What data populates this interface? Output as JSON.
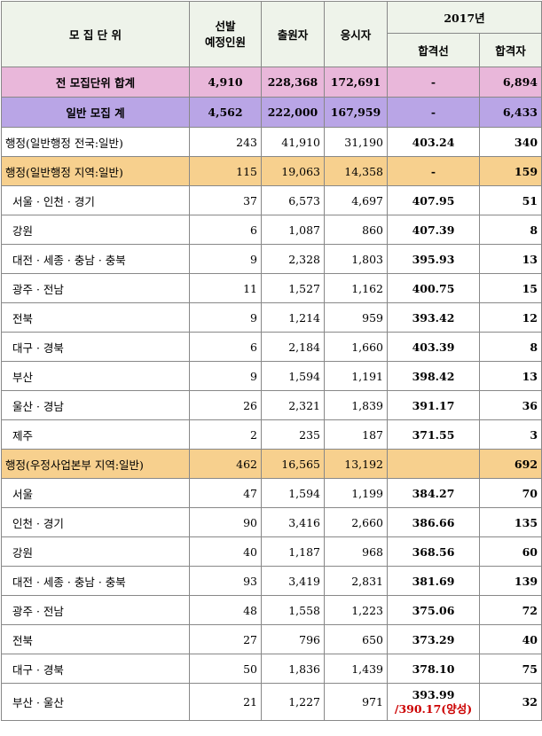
{
  "header": {
    "unit": "모 집 단 위",
    "planned": "선발\n예정인원",
    "applicants": "출원자",
    "takers": "응시자",
    "year": "2017년",
    "cutoff": "합격선",
    "passed": "합격자"
  },
  "summary": {
    "total": {
      "label": "전 모집단위 합계",
      "planned": "4,910",
      "applicants": "228,368",
      "takers": "172,691",
      "cutoff": "-",
      "passed": "6,894"
    },
    "general": {
      "label": "일반 모집 계",
      "planned": "4,562",
      "applicants": "222,000",
      "takers": "167,959",
      "cutoff": "-",
      "passed": "6,433"
    }
  },
  "rows": [
    {
      "label": "행정(일반행정 전국:일반)",
      "planned": "243",
      "applicants": "41,910",
      "takers": "31,190",
      "cutoff": "403.24",
      "passed": "340",
      "style": "plain"
    },
    {
      "label": "행정(일반행정 지역:일반)",
      "planned": "115",
      "applicants": "19,063",
      "takers": "14,358",
      "cutoff": "-",
      "passed": "159",
      "style": "orange"
    },
    {
      "label": "서울 · 인천 · 경기",
      "planned": "37",
      "applicants": "6,573",
      "takers": "4,697",
      "cutoff": "407.95",
      "passed": "51",
      "style": "sub"
    },
    {
      "label": "강원",
      "planned": "6",
      "applicants": "1,087",
      "takers": "860",
      "cutoff": "407.39",
      "passed": "8",
      "style": "sub"
    },
    {
      "label": "대전 · 세종 · 충남 · 충북",
      "planned": "9",
      "applicants": "2,328",
      "takers": "1,803",
      "cutoff": "395.93",
      "passed": "13",
      "style": "sub"
    },
    {
      "label": "광주 · 전남",
      "planned": "11",
      "applicants": "1,527",
      "takers": "1,162",
      "cutoff": "400.75",
      "passed": "15",
      "style": "sub"
    },
    {
      "label": "전북",
      "planned": "9",
      "applicants": "1,214",
      "takers": "959",
      "cutoff": "393.42",
      "passed": "12",
      "style": "sub"
    },
    {
      "label": "대구 · 경북",
      "planned": "6",
      "applicants": "2,184",
      "takers": "1,660",
      "cutoff": "403.39",
      "passed": "8",
      "style": "sub"
    },
    {
      "label": "부산",
      "planned": "9",
      "applicants": "1,594",
      "takers": "1,191",
      "cutoff": "398.42",
      "passed": "13",
      "style": "sub"
    },
    {
      "label": "울산 · 경남",
      "planned": "26",
      "applicants": "2,321",
      "takers": "1,839",
      "cutoff": "391.17",
      "passed": "36",
      "style": "sub"
    },
    {
      "label": "제주",
      "planned": "2",
      "applicants": "235",
      "takers": "187",
      "cutoff": "371.55",
      "passed": "3",
      "style": "sub"
    },
    {
      "label": "행정(우정사업본부 지역:일반)",
      "planned": "462",
      "applicants": "16,565",
      "takers": "13,192",
      "cutoff": "",
      "passed": "692",
      "style": "orange"
    },
    {
      "label": "서울",
      "planned": "47",
      "applicants": "1,594",
      "takers": "1,199",
      "cutoff": "384.27",
      "passed": "70",
      "style": "sub"
    },
    {
      "label": "인천 · 경기",
      "planned": "90",
      "applicants": "3,416",
      "takers": "2,660",
      "cutoff": "386.66",
      "passed": "135",
      "style": "sub"
    },
    {
      "label": "강원",
      "planned": "40",
      "applicants": "1,187",
      "takers": "968",
      "cutoff": "368.56",
      "passed": "60",
      "style": "sub"
    },
    {
      "label": "대전 · 세종 · 충남 · 충북",
      "planned": "93",
      "applicants": "3,419",
      "takers": "2,831",
      "cutoff": "381.69",
      "passed": "139",
      "style": "sub"
    },
    {
      "label": "광주 · 전남",
      "planned": "48",
      "applicants": "1,558",
      "takers": "1,223",
      "cutoff": "375.06",
      "passed": "72",
      "style": "sub"
    },
    {
      "label": "전북",
      "planned": "27",
      "applicants": "796",
      "takers": "650",
      "cutoff": "373.29",
      "passed": "40",
      "style": "sub"
    },
    {
      "label": "대구 · 경북",
      "planned": "50",
      "applicants": "1,836",
      "takers": "1,439",
      "cutoff": "378.10",
      "passed": "75",
      "style": "sub"
    },
    {
      "label": "부산 · 울산",
      "planned": "21",
      "applicants": "1,227",
      "takers": "971",
      "cutoff": "393.99",
      "cutoff_note": "/390.17(양성)",
      "passed": "32",
      "style": "sub"
    }
  ]
}
